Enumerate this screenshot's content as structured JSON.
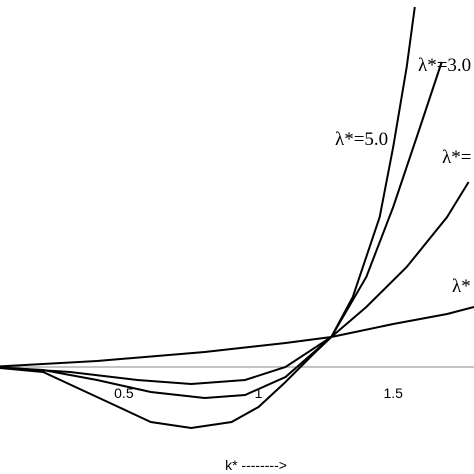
{
  "chart_data": {
    "type": "line",
    "x_label": "k* -------->",
    "xlim": [
      0.04,
      1.8
    ],
    "ylim": [
      -1.07,
      3.67
    ],
    "xticks": [
      0.5,
      1,
      1.5
    ],
    "series": [
      {
        "name": "λ*=5.0",
        "color": "#000000",
        "x": [
          0,
          0.2,
          0.4,
          0.6,
          0.75,
          0.9,
          1.0,
          1.1,
          1.2,
          1.27,
          1.35,
          1.45,
          1.5,
          1.55,
          1.58
        ],
        "values": [
          0,
          -0.05,
          -0.3,
          -0.55,
          -0.61,
          -0.55,
          -0.4,
          -0.15,
          0.12,
          0.3,
          0.7,
          1.5,
          2.2,
          3.0,
          3.6
        ]
      },
      {
        "name": "λ*=3.0",
        "color": "#000000",
        "x": [
          0,
          0.2,
          0.4,
          0.6,
          0.8,
          0.95,
          1.1,
          1.27,
          1.4,
          1.5,
          1.6,
          1.68
        ],
        "values": [
          0,
          -0.03,
          -0.13,
          -0.25,
          -0.31,
          -0.28,
          -0.1,
          0.3,
          0.9,
          1.6,
          2.4,
          3.05
        ]
      },
      {
        "name": "λ*=",
        "color": "#000000",
        "x": [
          0,
          0.3,
          0.55,
          0.75,
          0.95,
          1.1,
          1.27,
          1.4,
          1.55,
          1.7,
          1.78
        ],
        "values": [
          0,
          -0.05,
          -0.13,
          -0.17,
          -0.13,
          0,
          0.3,
          0.6,
          1.0,
          1.5,
          1.85
        ]
      },
      {
        "name": "λ*",
        "color": "#000000",
        "x": [
          0,
          0.4,
          0.8,
          1.1,
          1.27,
          1.5,
          1.7,
          1.8
        ],
        "values": [
          0,
          0.06,
          0.15,
          0.24,
          0.3,
          0.43,
          0.53,
          0.6
        ]
      }
    ]
  }
}
